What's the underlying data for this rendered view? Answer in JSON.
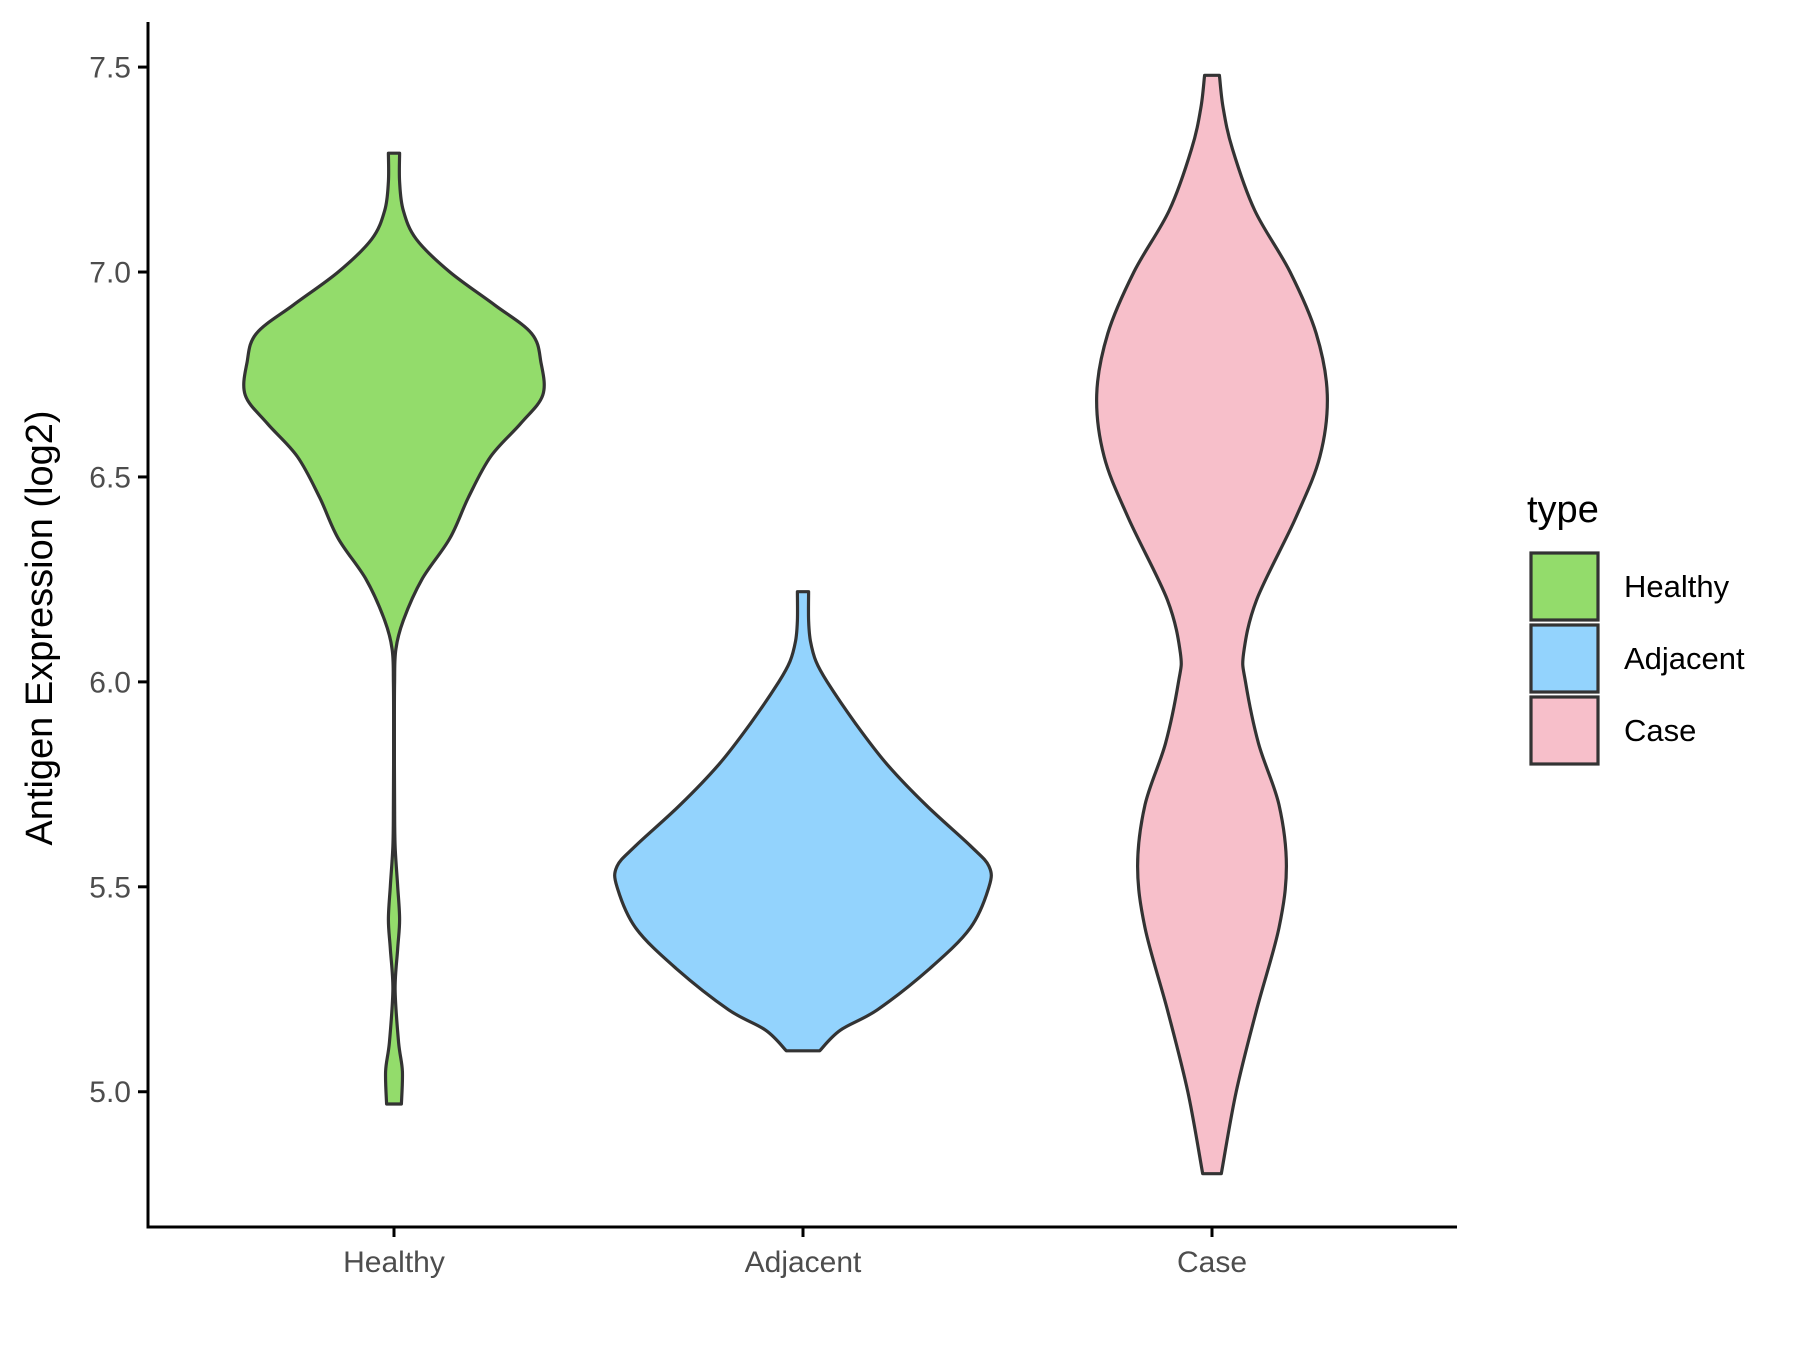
{
  "chart_data": {
    "type": "violin",
    "title": "",
    "xlabel": "",
    "ylabel": "Antigen Expression (log2)",
    "categories": [
      "Healthy",
      "Adjacent",
      "Case"
    ],
    "yticks": [
      "5.0",
      "5.5",
      "6.0",
      "6.5",
      "7.0",
      "7.5"
    ],
    "ylim": [
      4.67,
      7.61
    ],
    "grid": false,
    "legend": {
      "title": "type",
      "position": "right",
      "entries": [
        "Healthy",
        "Adjacent",
        "Case"
      ]
    },
    "colors": {
      "Healthy": "#93dc6b",
      "Adjacent": "#93d3fd",
      "Case": "#f7bfca",
      "outline": "#333333"
    },
    "series": [
      {
        "name": "Healthy",
        "range": [
          4.97,
          7.29
        ],
        "profile": [
          [
            4.97,
            0.04
          ],
          [
            5.05,
            0.045
          ],
          [
            5.12,
            0.025
          ],
          [
            5.25,
            0.006
          ],
          [
            5.35,
            0.02
          ],
          [
            5.42,
            0.03
          ],
          [
            5.5,
            0.02
          ],
          [
            5.6,
            0.006
          ],
          [
            5.7,
            0.003
          ],
          [
            5.85,
            0.002
          ],
          [
            6.0,
            0.003
          ],
          [
            6.08,
            0.01
          ],
          [
            6.15,
            0.05
          ],
          [
            6.25,
            0.15
          ],
          [
            6.35,
            0.3
          ],
          [
            6.45,
            0.4
          ],
          [
            6.55,
            0.52
          ],
          [
            6.63,
            0.68
          ],
          [
            6.7,
            0.8
          ],
          [
            6.78,
            0.79
          ],
          [
            6.85,
            0.74
          ],
          [
            6.92,
            0.54
          ],
          [
            7.0,
            0.3
          ],
          [
            7.08,
            0.12
          ],
          [
            7.15,
            0.05
          ],
          [
            7.22,
            0.03
          ],
          [
            7.29,
            0.03
          ]
        ]
      },
      {
        "name": "Adjacent",
        "range": [
          5.1,
          6.22
        ],
        "profile": [
          [
            5.1,
            0.09
          ],
          [
            5.15,
            0.2
          ],
          [
            5.2,
            0.4
          ],
          [
            5.3,
            0.68
          ],
          [
            5.4,
            0.9
          ],
          [
            5.5,
            1.0
          ],
          [
            5.55,
            1.0
          ],
          [
            5.6,
            0.9
          ],
          [
            5.7,
            0.66
          ],
          [
            5.8,
            0.45
          ],
          [
            5.9,
            0.28
          ],
          [
            6.0,
            0.13
          ],
          [
            6.05,
            0.07
          ],
          [
            6.1,
            0.04
          ],
          [
            6.15,
            0.03
          ],
          [
            6.22,
            0.03
          ]
        ]
      },
      {
        "name": "Case",
        "range": [
          4.8,
          7.48
        ],
        "profile": [
          [
            4.8,
            0.05
          ],
          [
            5.0,
            0.13
          ],
          [
            5.2,
            0.24
          ],
          [
            5.4,
            0.36
          ],
          [
            5.55,
            0.4
          ],
          [
            5.7,
            0.36
          ],
          [
            5.85,
            0.25
          ],
          [
            6.0,
            0.18
          ],
          [
            6.07,
            0.17
          ],
          [
            6.2,
            0.24
          ],
          [
            6.4,
            0.45
          ],
          [
            6.55,
            0.58
          ],
          [
            6.7,
            0.62
          ],
          [
            6.85,
            0.56
          ],
          [
            7.0,
            0.42
          ],
          [
            7.15,
            0.23
          ],
          [
            7.3,
            0.11
          ],
          [
            7.4,
            0.06
          ],
          [
            7.48,
            0.04
          ]
        ]
      }
    ]
  }
}
